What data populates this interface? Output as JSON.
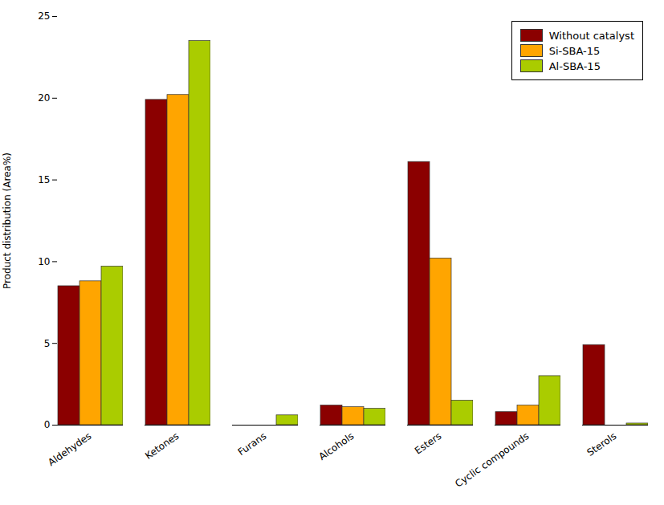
{
  "chart_data": {
    "type": "bar",
    "categories": [
      "Aldehydes",
      "Ketones",
      "Furans",
      "Alcohols",
      "Esters",
      "Cyclic compounds",
      "Sterols"
    ],
    "series": [
      {
        "name": "Without catalyst",
        "color": "#8B0000",
        "values": [
          8.5,
          19.9,
          0.0,
          1.2,
          16.1,
          0.8,
          4.9
        ]
      },
      {
        "name": "Si-SBA-15",
        "color": "#FFA500",
        "values": [
          8.8,
          20.2,
          0.0,
          1.1,
          10.2,
          1.2,
          0.0
        ]
      },
      {
        "name": "Al-SBA-15",
        "color": "#AACC00",
        "values": [
          9.7,
          23.5,
          0.6,
          1.0,
          1.5,
          3.0,
          0.1
        ]
      }
    ],
    "ylabel": "Product distribution (Area%)",
    "ylim": [
      0,
      25
    ],
    "yticks": [
      0,
      5,
      10,
      15,
      20,
      25
    ],
    "grid": false,
    "legend": "upper right"
  }
}
